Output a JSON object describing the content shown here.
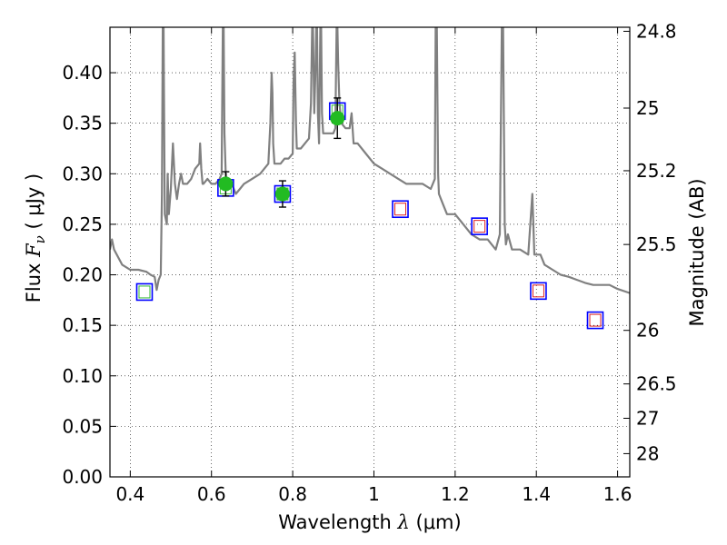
{
  "chart_data": {
    "type": "scatter",
    "title": "",
    "xlabel": {
      "prefix": "Wavelength  ",
      "symbol": "λ",
      "unit": " (μm)"
    },
    "ylabel": {
      "prefix": "Flux  ",
      "symbol": "F",
      "subscript": "ν",
      "unit": "  ( μJy )"
    },
    "y2label": "Magnitude (AB)",
    "xlim": [
      0.35,
      1.63
    ],
    "ylim": [
      0.0,
      0.445
    ],
    "x_ticks": [
      0.4,
      0.6,
      0.8,
      1.0,
      1.2,
      1.4,
      1.6
    ],
    "x_tick_labels": [
      "0.4",
      "0.6",
      "0.8",
      "1",
      "1.2",
      "1.4",
      "1.6"
    ],
    "y_ticks": [
      0.0,
      0.05,
      0.1,
      0.15,
      0.2,
      0.25,
      0.3,
      0.35,
      0.4
    ],
    "y_tick_labels": [
      "0.00",
      "0.05",
      "0.10",
      "0.15",
      "0.20",
      "0.25",
      "0.30",
      "0.35",
      "0.40"
    ],
    "y2_ticks": [
      {
        "flux": 0.441,
        "label": "24.8"
      },
      {
        "flux": 0.365,
        "label": "25"
      },
      {
        "flux": 0.303,
        "label": "25.2"
      },
      {
        "flux": 0.23,
        "label": "25.5"
      },
      {
        "flux": 0.145,
        "label": "26"
      },
      {
        "flux": 0.092,
        "label": "26.5"
      },
      {
        "flux": 0.058,
        "label": "27"
      },
      {
        "flux": 0.023,
        "label": "28"
      }
    ],
    "grid": true,
    "colors": {
      "template": "#808080",
      "model_box": "#0000ff",
      "upper_inner": "#dd2222",
      "lower_inner": "#33bb33",
      "observed": "#22bb22",
      "errorbar": "#000000"
    },
    "series": [
      {
        "kind": "line",
        "x": [
          0.35,
          0.355,
          0.36,
          0.38,
          0.4,
          0.42,
          0.44,
          0.45,
          0.46,
          0.465,
          0.47,
          0.475,
          0.478,
          0.48,
          0.482,
          0.485,
          0.49,
          0.492,
          0.495,
          0.5,
          0.505,
          0.51,
          0.515,
          0.52,
          0.525,
          0.53,
          0.54,
          0.55,
          0.56,
          0.57,
          0.572,
          0.575,
          0.578,
          0.58,
          0.59,
          0.6,
          0.61,
          0.62,
          0.625,
          0.628,
          0.63,
          0.632,
          0.635,
          0.64,
          0.65,
          0.66,
          0.67,
          0.68,
          0.7,
          0.72,
          0.74,
          0.745,
          0.748,
          0.75,
          0.752,
          0.755,
          0.76,
          0.77,
          0.78,
          0.79,
          0.8,
          0.802,
          0.805,
          0.808,
          0.81,
          0.82,
          0.83,
          0.84,
          0.845,
          0.848,
          0.85,
          0.853,
          0.856,
          0.858,
          0.86,
          0.862,
          0.865,
          0.868,
          0.87,
          0.872,
          0.875,
          0.88,
          0.9,
          0.905,
          0.908,
          0.91,
          0.912,
          0.915,
          0.92,
          0.93,
          0.94,
          0.945,
          0.95,
          0.96,
          0.98,
          1.0,
          1.02,
          1.04,
          1.06,
          1.08,
          1.1,
          1.12,
          1.14,
          1.15,
          1.152,
          1.155,
          1.158,
          1.16,
          1.17,
          1.18,
          1.2,
          1.22,
          1.24,
          1.26,
          1.28,
          1.3,
          1.31,
          1.315,
          1.318,
          1.32,
          1.322,
          1.325,
          1.33,
          1.34,
          1.36,
          1.38,
          1.39,
          1.395,
          1.4,
          1.41,
          1.42,
          1.44,
          1.46,
          1.48,
          1.5,
          1.52,
          1.54,
          1.56,
          1.58,
          1.6,
          1.63
        ],
        "y": [
          0.225,
          0.235,
          0.225,
          0.21,
          0.205,
          0.205,
          0.203,
          0.2,
          0.198,
          0.185,
          0.195,
          0.2,
          0.28,
          0.445,
          0.445,
          0.26,
          0.25,
          0.3,
          0.26,
          0.285,
          0.33,
          0.29,
          0.275,
          0.29,
          0.3,
          0.29,
          0.29,
          0.295,
          0.305,
          0.31,
          0.33,
          0.305,
          0.29,
          0.29,
          0.295,
          0.29,
          0.29,
          0.295,
          0.3,
          0.445,
          0.445,
          0.34,
          0.3,
          0.29,
          0.29,
          0.28,
          0.285,
          0.29,
          0.295,
          0.3,
          0.31,
          0.35,
          0.4,
          0.38,
          0.33,
          0.31,
          0.31,
          0.31,
          0.315,
          0.315,
          0.32,
          0.39,
          0.42,
          0.35,
          0.325,
          0.325,
          0.33,
          0.335,
          0.37,
          0.445,
          0.445,
          0.36,
          0.4,
          0.445,
          0.445,
          0.36,
          0.33,
          0.445,
          0.445,
          0.36,
          0.34,
          0.34,
          0.34,
          0.345,
          0.445,
          0.445,
          0.41,
          0.37,
          0.35,
          0.345,
          0.345,
          0.36,
          0.33,
          0.33,
          0.32,
          0.31,
          0.305,
          0.3,
          0.295,
          0.29,
          0.29,
          0.29,
          0.285,
          0.295,
          0.445,
          0.445,
          0.3,
          0.28,
          0.27,
          0.26,
          0.26,
          0.25,
          0.24,
          0.235,
          0.235,
          0.225,
          0.24,
          0.445,
          0.445,
          0.35,
          0.25,
          0.23,
          0.24,
          0.225,
          0.225,
          0.22,
          0.28,
          0.22,
          0.22,
          0.22,
          0.21,
          0.205,
          0.2,
          0.198,
          0.195,
          0.192,
          0.19,
          0.19,
          0.19,
          0.186,
          0.182
        ]
      },
      {
        "kind": "model_boxes",
        "upper_band": {
          "x": [
            1.065,
            1.26,
            1.405,
            1.545
          ],
          "y": [
            0.265,
            0.248,
            0.184,
            0.155
          ]
        },
        "lower_band": {
          "x": [
            0.435,
            0.635,
            0.775,
            0.91
          ],
          "y": [
            0.183,
            0.286,
            0.28,
            0.362
          ]
        }
      },
      {
        "kind": "observed",
        "x": [
          0.635,
          0.775,
          0.91
        ],
        "y": [
          0.29,
          0.28,
          0.355
        ],
        "yerr": [
          0.012,
          0.013,
          0.02
        ]
      }
    ]
  }
}
